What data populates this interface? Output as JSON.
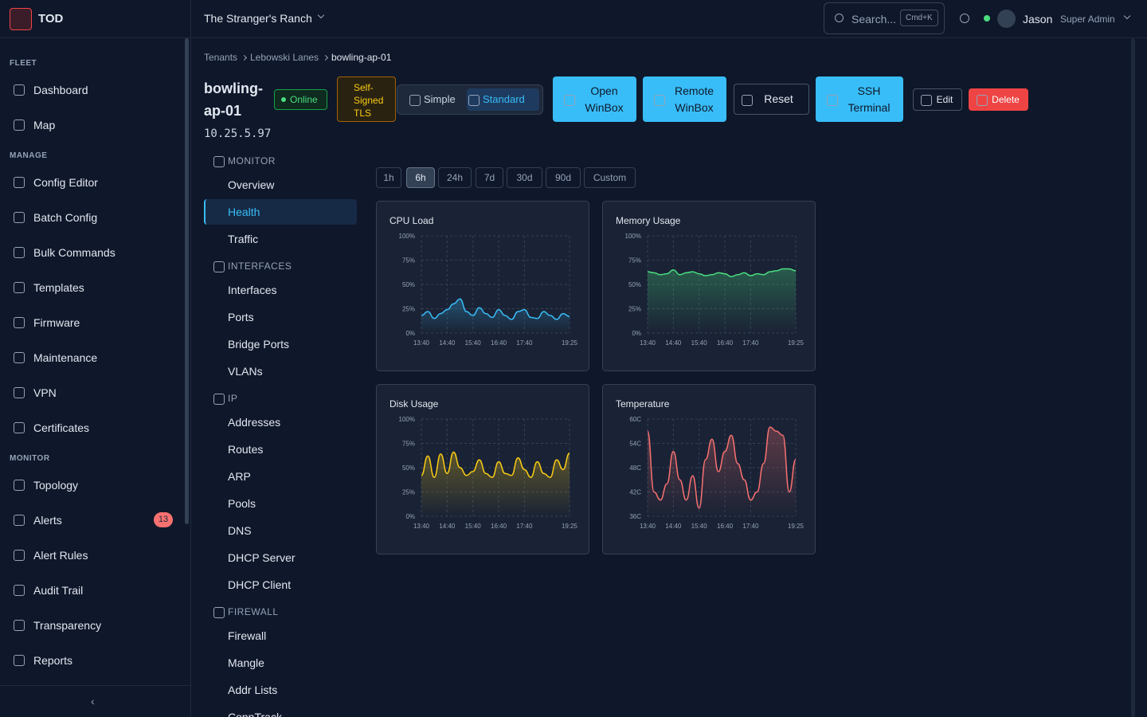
{
  "brand": "TOD",
  "sidebar": {
    "sections": [
      {
        "heading": "FLEET",
        "items": [
          "Dashboard",
          "Map"
        ]
      },
      {
        "heading": "MANAGE",
        "items": [
          "Config Editor",
          "Batch Config",
          "Bulk Commands",
          "Templates",
          "Firmware",
          "Maintenance",
          "VPN",
          "Certificates"
        ]
      },
      {
        "heading": "MONITOR",
        "items": [
          "Topology",
          "Alerts",
          "Alert Rules",
          "Audit Trail",
          "Transparency",
          "Reports"
        ]
      }
    ],
    "alert_badge": 13
  },
  "topbar": {
    "tenant": "The Stranger's Ranch",
    "search": "Search...",
    "shortcut": "Cmd+K",
    "user": "Jason",
    "role": "Super Admin"
  },
  "breadcrumb": [
    "Tenants",
    "Lebowski Lanes",
    "bowling-ap-01"
  ],
  "device": {
    "name": "bowling-ap-01",
    "ip": "10.25.5.97",
    "status": "Online",
    "tls": "Self-Signed TLS"
  },
  "view_modes": [
    "Simple",
    "Standard"
  ],
  "actions": [
    "Open WinBox",
    "Remote WinBox",
    "Reset",
    "SSH Terminal",
    "Edit",
    "Delete"
  ],
  "subnav": [
    {
      "heading": "MONITOR",
      "items": [
        "Overview",
        "Health",
        "Traffic"
      ]
    },
    {
      "heading": "INTERFACES",
      "items": [
        "Interfaces",
        "Ports",
        "Bridge Ports",
        "VLANs"
      ]
    },
    {
      "heading": "IP",
      "items": [
        "Addresses",
        "Routes",
        "ARP",
        "Pools",
        "DNS",
        "DHCP Server",
        "DHCP Client"
      ]
    },
    {
      "heading": "FIREWALL",
      "items": [
        "Firewall",
        "Mangle",
        "Addr Lists",
        "ConnTrack"
      ]
    }
  ],
  "time_ranges": [
    "1h",
    "6h",
    "24h",
    "7d",
    "30d",
    "90d",
    "Custom"
  ],
  "chart_data": [
    {
      "type": "line",
      "title": "CPU Load",
      "color": "#38bdf8",
      "grid": true,
      "categories": [
        "13:40",
        null,
        null,
        null,
        "14:40",
        null,
        null,
        null,
        "15:40",
        null,
        null,
        null,
        "16:40",
        null,
        null,
        null,
        "17:40",
        null,
        null,
        null,
        null,
        null,
        null,
        "19:25"
      ],
      "values": [
        18,
        22,
        15,
        20,
        24,
        30,
        35,
        22,
        18,
        26,
        20,
        16,
        24,
        18,
        14,
        22,
        24,
        16,
        15,
        22,
        18,
        14,
        20,
        17
      ],
      "ylim": [
        0,
        100
      ],
      "yticks": [
        {
          "value": 0,
          "label": "0%"
        },
        {
          "value": 25,
          "label": "25%"
        },
        {
          "value": 50,
          "label": "50%"
        },
        {
          "value": 75,
          "label": "75%"
        },
        {
          "value": 100,
          "label": "100%"
        }
      ]
    },
    {
      "type": "line",
      "title": "Memory Usage",
      "color": "#4ade80",
      "grid": true,
      "categories": [
        "13:40",
        null,
        null,
        null,
        "14:40",
        null,
        null,
        null,
        "15:40",
        null,
        null,
        null,
        "16:40",
        null,
        null,
        null,
        "17:40",
        null,
        null,
        null,
        null,
        null,
        null,
        "19:25"
      ],
      "values": [
        63,
        62,
        60,
        61,
        65,
        60,
        62,
        63,
        61,
        59,
        60,
        62,
        61,
        58,
        60,
        62,
        59,
        61,
        60,
        63,
        64,
        66,
        66,
        64
      ],
      "ylim": [
        0,
        100
      ],
      "yticks": [
        {
          "value": 0,
          "label": "0%"
        },
        {
          "value": 25,
          "label": "25%"
        },
        {
          "value": 50,
          "label": "50%"
        },
        {
          "value": 75,
          "label": "75%"
        },
        {
          "value": 100,
          "label": "100%"
        }
      ]
    },
    {
      "type": "line",
      "title": "Disk Usage",
      "color": "#facc15",
      "grid": true,
      "categories": [
        "13:40",
        null,
        null,
        null,
        "14:40",
        null,
        null,
        null,
        "15:40",
        null,
        null,
        null,
        "16:40",
        null,
        null,
        null,
        "17:40",
        null,
        null,
        null,
        null,
        null,
        null,
        "19:25"
      ],
      "values": [
        42,
        62,
        40,
        64,
        44,
        66,
        50,
        42,
        46,
        58,
        44,
        40,
        56,
        44,
        42,
        60,
        48,
        40,
        56,
        44,
        40,
        58,
        48,
        65
      ],
      "ylim": [
        0,
        100
      ],
      "yticks": [
        {
          "value": 0,
          "label": "0%"
        },
        {
          "value": 25,
          "label": "25%"
        },
        {
          "value": 50,
          "label": "50%"
        },
        {
          "value": 75,
          "label": "75%"
        },
        {
          "value": 100,
          "label": "100%"
        }
      ]
    },
    {
      "type": "line",
      "title": "Temperature",
      "color": "#f87171",
      "grid": true,
      "categories": [
        "13:40",
        null,
        null,
        null,
        "14:40",
        null,
        null,
        null,
        "15:40",
        null,
        null,
        null,
        "16:40",
        null,
        null,
        null,
        "17:40",
        null,
        null,
        null,
        null,
        null,
        null,
        "19:25"
      ],
      "values": [
        57,
        42,
        40,
        44,
        52,
        45,
        40,
        46,
        38,
        50,
        55,
        47,
        52,
        56,
        49,
        45,
        40,
        42,
        49,
        58,
        57,
        56,
        42,
        50
      ],
      "ylim": [
        36,
        60
      ],
      "yticks": [
        {
          "value": 36,
          "label": "36C"
        },
        {
          "value": 42,
          "label": "42C"
        },
        {
          "value": 48,
          "label": "48C"
        },
        {
          "value": 54,
          "label": "54C"
        },
        {
          "value": 60,
          "label": "60C"
        }
      ]
    }
  ]
}
